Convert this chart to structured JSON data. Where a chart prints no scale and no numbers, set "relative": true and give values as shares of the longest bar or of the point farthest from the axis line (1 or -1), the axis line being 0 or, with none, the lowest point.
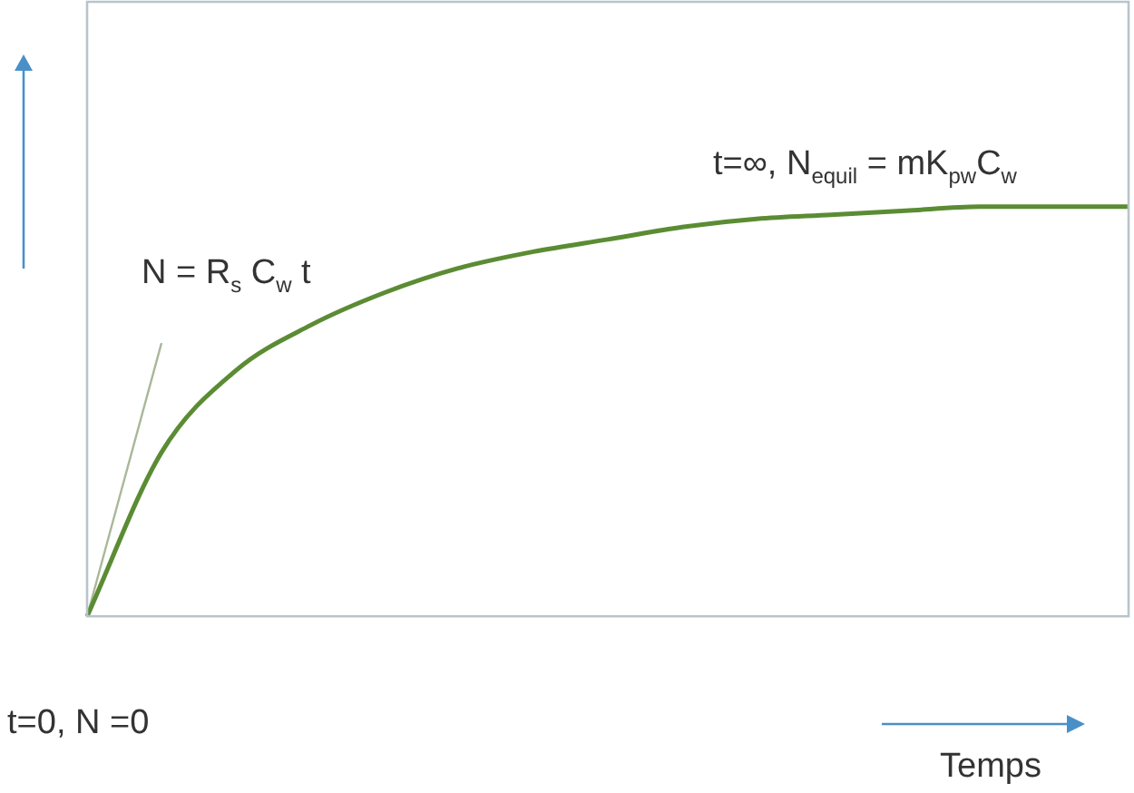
{
  "chart_data": {
    "type": "line",
    "relative": true,
    "legend": false,
    "marker": "none",
    "line_style": "solid",
    "xlabel": "Temps",
    "categories": [
      null,
      null,
      null,
      null,
      null,
      null,
      null,
      null,
      null,
      null,
      null,
      null,
      null,
      null,
      null
    ],
    "series": [
      {
        "color": "#5b8c34",
        "values": [
          0,
          0.4,
          0.6,
          0.71,
          0.79,
          0.85,
          0.89,
          0.92,
          0.95,
          0.97,
          0.98,
          0.99,
          1,
          1,
          1
        ]
      },
      {
        "color": "#a8b898",
        "values": [
          0,
          0.667,
          null,
          null,
          null,
          null,
          null,
          null,
          null,
          null,
          null,
          null,
          null,
          null,
          null
        ]
      }
    ],
    "annotations": [
      "t=∞, N$_{equil}$ = mK$_{pw}$C$_{w}$",
      "N = R$_{s}$ C$_{w}$ t",
      "t=0, N =0"
    ]
  }
}
